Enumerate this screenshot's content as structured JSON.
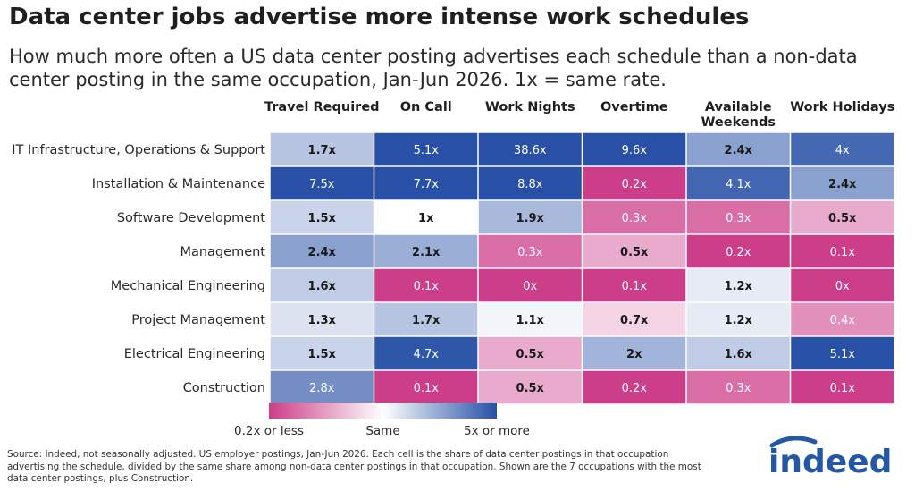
{
  "title": "Data center jobs advertise more intense work schedules",
  "subtitle": "How much more often a US data center posting advertises each schedule than a non-data center posting in the same occupation, Jan-Jun 2026. 1x = same rate.",
  "source": "Source: Indeed, not seasonally adjusted. US employer postings, Jan-Jun 2026. Each cell is the share of data center postings in that occupation advertising the schedule, divided by the same share among non-data center postings in that occupation. Shown are the 7 occupations with the most data center postings, plus Construction.",
  "logo_text": "indeed",
  "colors": {
    "low": "#cc3d8a",
    "mid": "#ffffff",
    "high": "#2750a6"
  },
  "chart_data": {
    "type": "heatmap",
    "columns": [
      "Travel Required",
      "On Call",
      "Work Nights",
      "Overtime",
      "Available Weekends",
      "Work Holidays"
    ],
    "rows": [
      "IT Infrastructure, Operations & Support",
      "Installation & Maintenance",
      "Software Development",
      "Management",
      "Mechanical Engineering",
      "Project Management",
      "Electrical Engineering",
      "Construction"
    ],
    "values": [
      [
        1.7,
        5.1,
        38.6,
        9.6,
        2.4,
        4
      ],
      [
        7.5,
        7.7,
        8.8,
        0.2,
        4.1,
        2.4
      ],
      [
        1.5,
        1,
        1.9,
        0.3,
        0.3,
        0.5
      ],
      [
        2.4,
        2.1,
        0.3,
        0.5,
        0.2,
        0.1
      ],
      [
        1.6,
        0.1,
        0,
        0.1,
        1.2,
        0
      ],
      [
        1.3,
        1.7,
        1.1,
        0.7,
        1.2,
        0.4
      ],
      [
        1.5,
        4.7,
        0.5,
        2,
        1.6,
        5.1
      ],
      [
        2.8,
        0.1,
        0.5,
        0.2,
        0.3,
        0.1
      ]
    ],
    "labels": [
      [
        "1.7x",
        "5.1x",
        "38.6x",
        "9.6x",
        "2.4x",
        "4x"
      ],
      [
        "7.5x",
        "7.7x",
        "8.8x",
        "0.2x",
        "4.1x",
        "2.4x"
      ],
      [
        "1.5x",
        "1x",
        "1.9x",
        "0.3x",
        "0.3x",
        "0.5x"
      ],
      [
        "2.4x",
        "2.1x",
        "0.3x",
        "0.5x",
        "0.2x",
        "0.1x"
      ],
      [
        "1.6x",
        "0.1x",
        "0x",
        "0.1x",
        "1.2x",
        "0x"
      ],
      [
        "1.3x",
        "1.7x",
        "1.1x",
        "0.7x",
        "1.2x",
        "0.4x"
      ],
      [
        "1.5x",
        "4.7x",
        "0.5x",
        "2x",
        "1.6x",
        "5.1x"
      ],
      [
        "2.8x",
        "0.1x",
        "0.5x",
        "0.2x",
        "0.3x",
        "0.1x"
      ]
    ],
    "scale": "log",
    "color_min": 0.2,
    "color_mid": 1,
    "color_max": 5,
    "legend": {
      "low_label": "0.2x or less",
      "mid_label": "Same",
      "high_label": "5x or more"
    }
  }
}
